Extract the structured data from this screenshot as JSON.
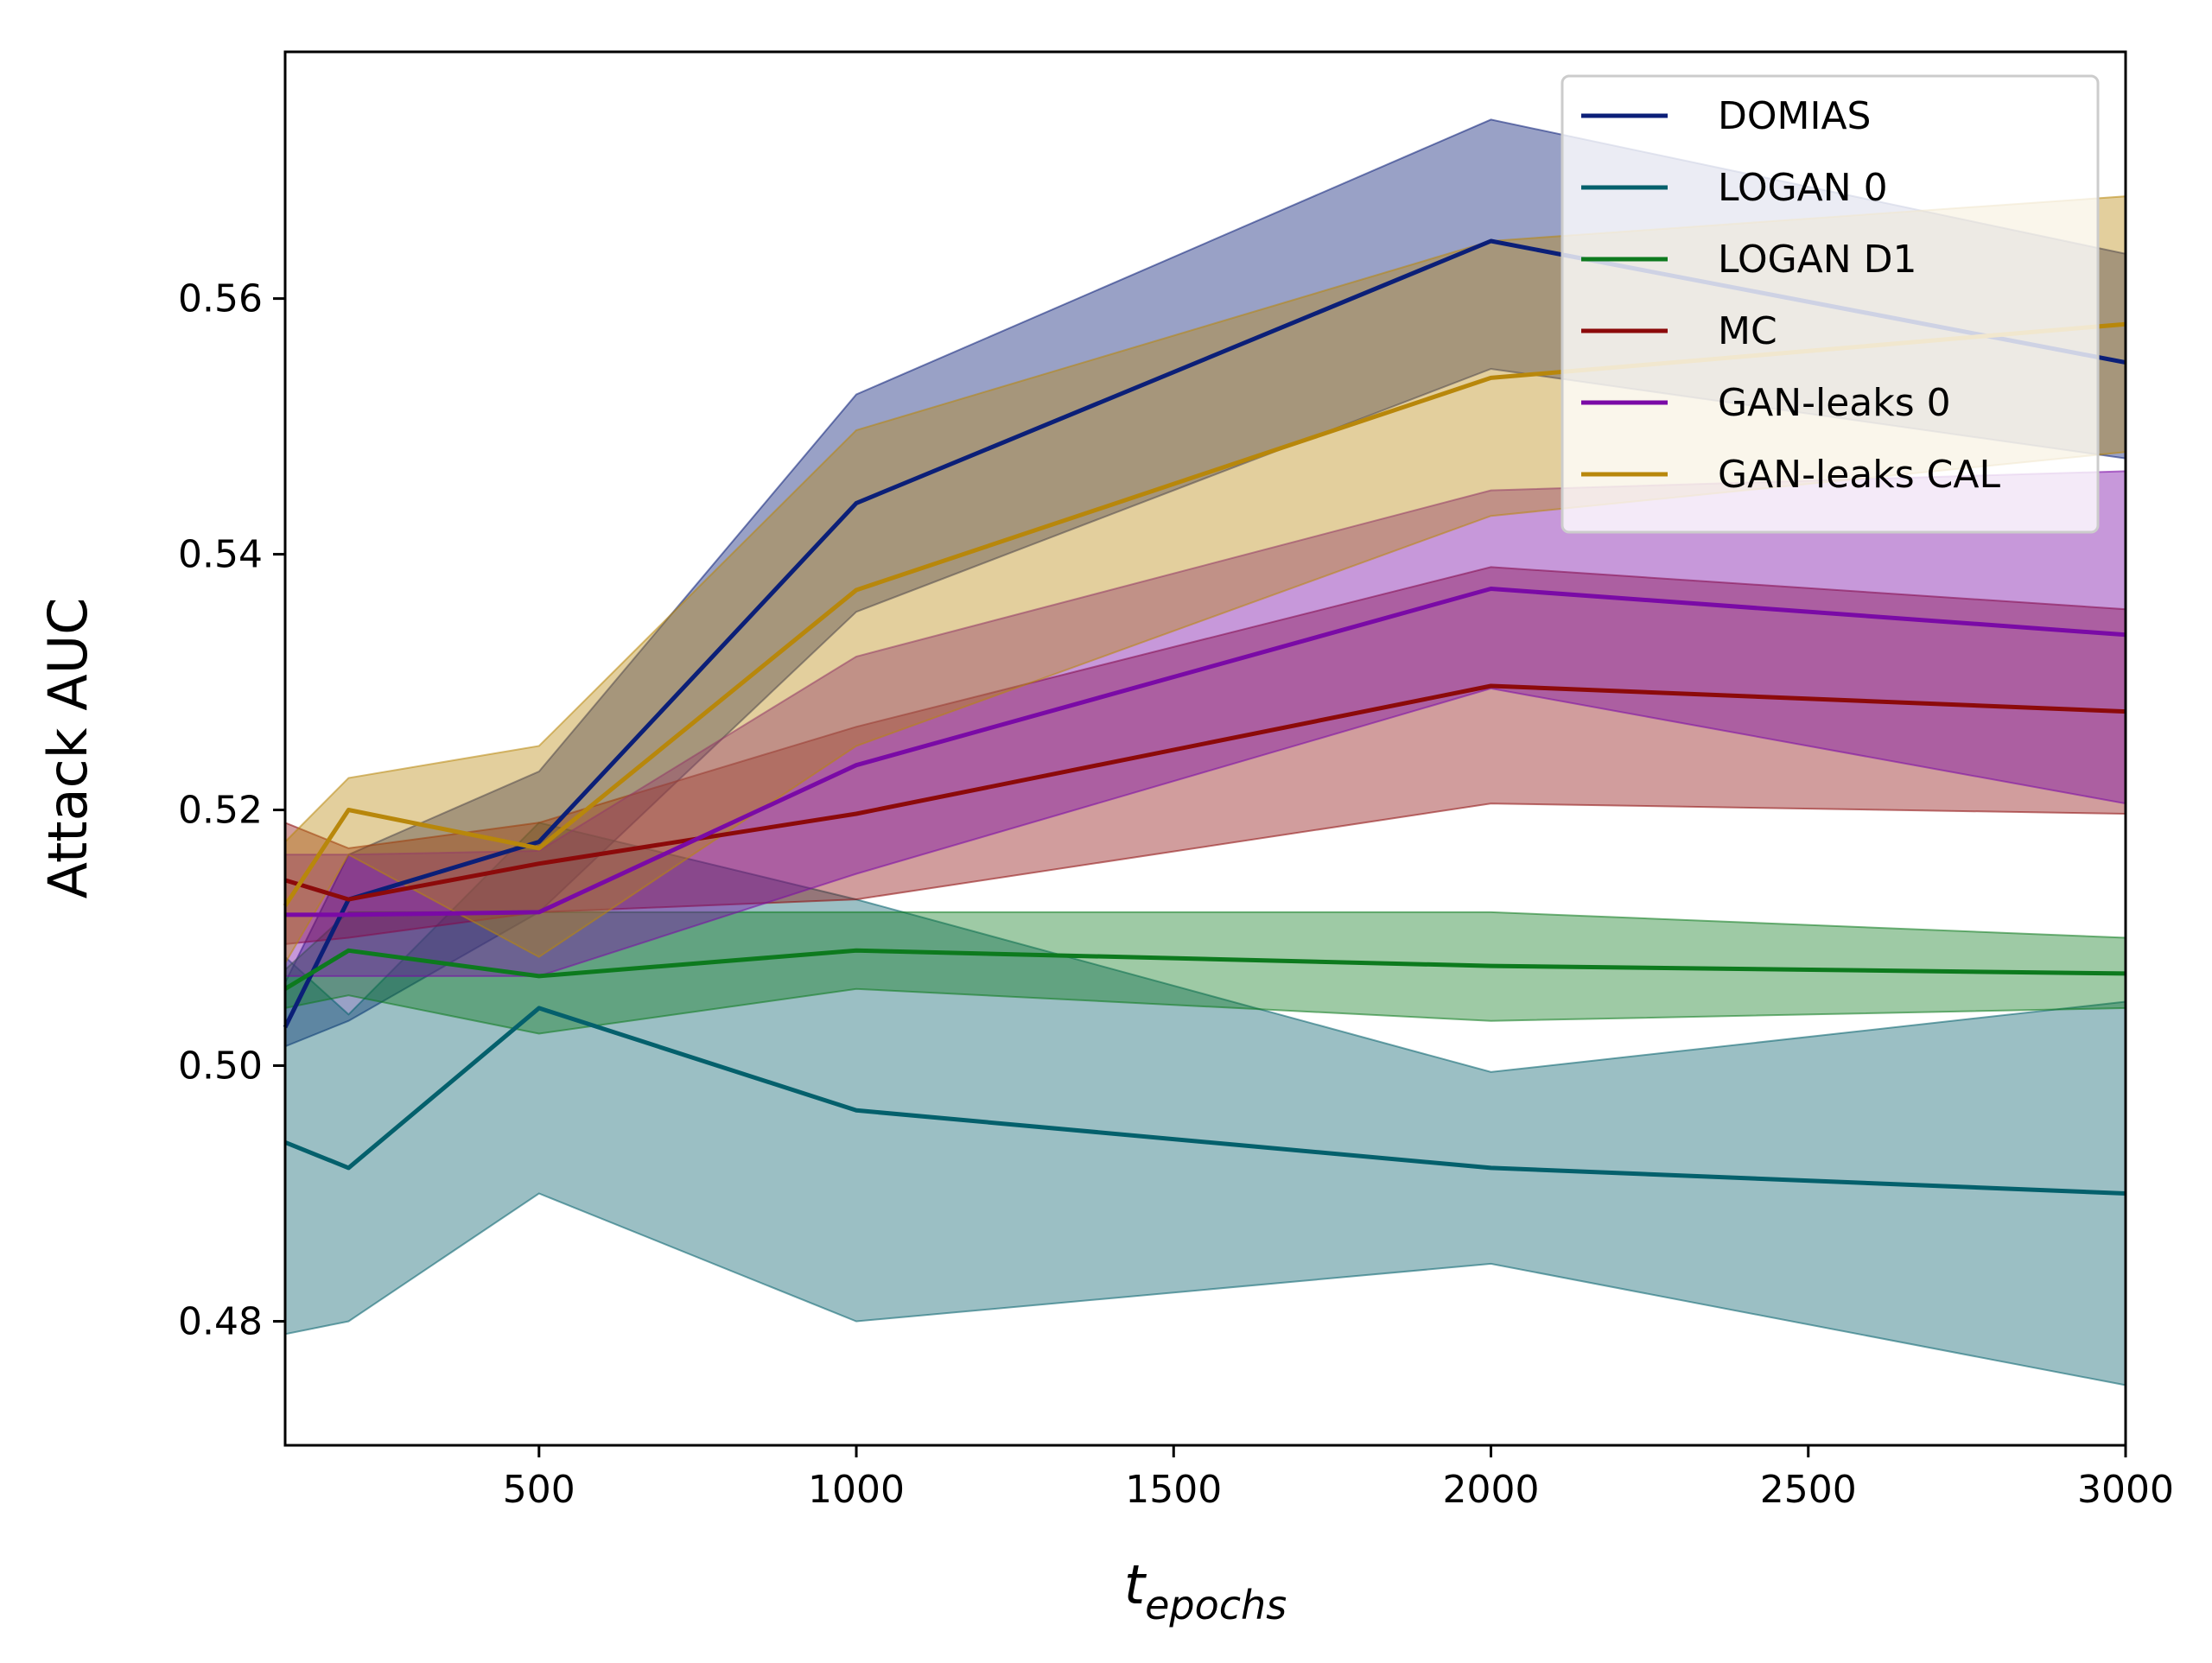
{
  "chart_data": {
    "type": "line",
    "ylabel": "Attack AUC",
    "xlabel_main": "t",
    "xlabel_sub": "epochs",
    "xlim": [
      100,
      3000
    ],
    "ylim": [
      0.4703,
      0.5793
    ],
    "x_ticks": [
      500,
      1000,
      1500,
      2000,
      2500,
      3000
    ],
    "x_tick_labels": [
      "500",
      "1000",
      "1500",
      "2000",
      "2500",
      "3000"
    ],
    "y_ticks": [
      0.48,
      0.5,
      0.52,
      0.54,
      0.56
    ],
    "y_tick_labels": [
      "0.48",
      "0.50",
      "0.52",
      "0.54",
      "0.56"
    ],
    "grid": false,
    "legend_position": "top-right",
    "x": [
      100,
      200,
      500,
      1000,
      2000,
      3000
    ],
    "series": [
      {
        "name": "DOMIAS",
        "color": "#0b1f78",
        "band_alpha": 0.42,
        "values": [
          0.503,
          0.513,
          0.5175,
          0.544,
          0.5645,
          0.555
        ],
        "lower": [
          0.5015,
          0.5035,
          0.512,
          0.5355,
          0.5545,
          0.5475
        ],
        "upper": [
          0.5065,
          0.5165,
          0.523,
          0.5525,
          0.574,
          0.5635
        ]
      },
      {
        "name": "LOGAN 0",
        "color": "#04606c",
        "band_alpha": 0.4,
        "values": [
          0.494,
          0.492,
          0.5045,
          0.4965,
          0.492,
          0.49
        ],
        "lower": [
          0.479,
          0.48,
          0.49,
          0.48,
          0.4845,
          0.475
        ],
        "upper": [
          0.5085,
          0.504,
          0.519,
          0.513,
          0.4995,
          0.505
        ]
      },
      {
        "name": "LOGAN D1",
        "color": "#0d7a1e",
        "band_alpha": 0.4,
        "values": [
          0.506,
          0.509,
          0.507,
          0.509,
          0.5078,
          0.5072
        ],
        "lower": [
          0.5045,
          0.5055,
          0.5025,
          0.506,
          0.5035,
          0.5045
        ],
        "upper": [
          0.5075,
          0.512,
          0.512,
          0.512,
          0.512,
          0.51
        ]
      },
      {
        "name": "MC",
        "color": "#8c0a0a",
        "band_alpha": 0.4,
        "values": [
          0.5145,
          0.513,
          0.5158,
          0.5197,
          0.5297,
          0.5277
        ],
        "lower": [
          0.5095,
          0.51,
          0.512,
          0.513,
          0.5205,
          0.5197
        ],
        "upper": [
          0.519,
          0.517,
          0.519,
          0.5265,
          0.539,
          0.5357
        ]
      },
      {
        "name": "GAN-leaks 0",
        "color": "#7a0aa6",
        "band_alpha": 0.42,
        "values": [
          0.5118,
          0.5118,
          0.512,
          0.5235,
          0.5373,
          0.5337
        ],
        "lower": [
          0.507,
          0.507,
          0.507,
          0.515,
          0.5295,
          0.5205
        ],
        "upper": [
          0.5165,
          0.5165,
          0.5168,
          0.532,
          0.545,
          0.5465
        ]
      },
      {
        "name": "GAN-leaks CAL",
        "color": "#b8870b",
        "band_alpha": 0.4,
        "values": [
          0.5125,
          0.52,
          0.517,
          0.5372,
          0.5538,
          0.558
        ],
        "lower": [
          0.508,
          0.5165,
          0.5085,
          0.525,
          0.543,
          0.548
        ],
        "upper": [
          0.5175,
          0.5225,
          0.525,
          0.5497,
          0.5645,
          0.568
        ]
      }
    ]
  }
}
